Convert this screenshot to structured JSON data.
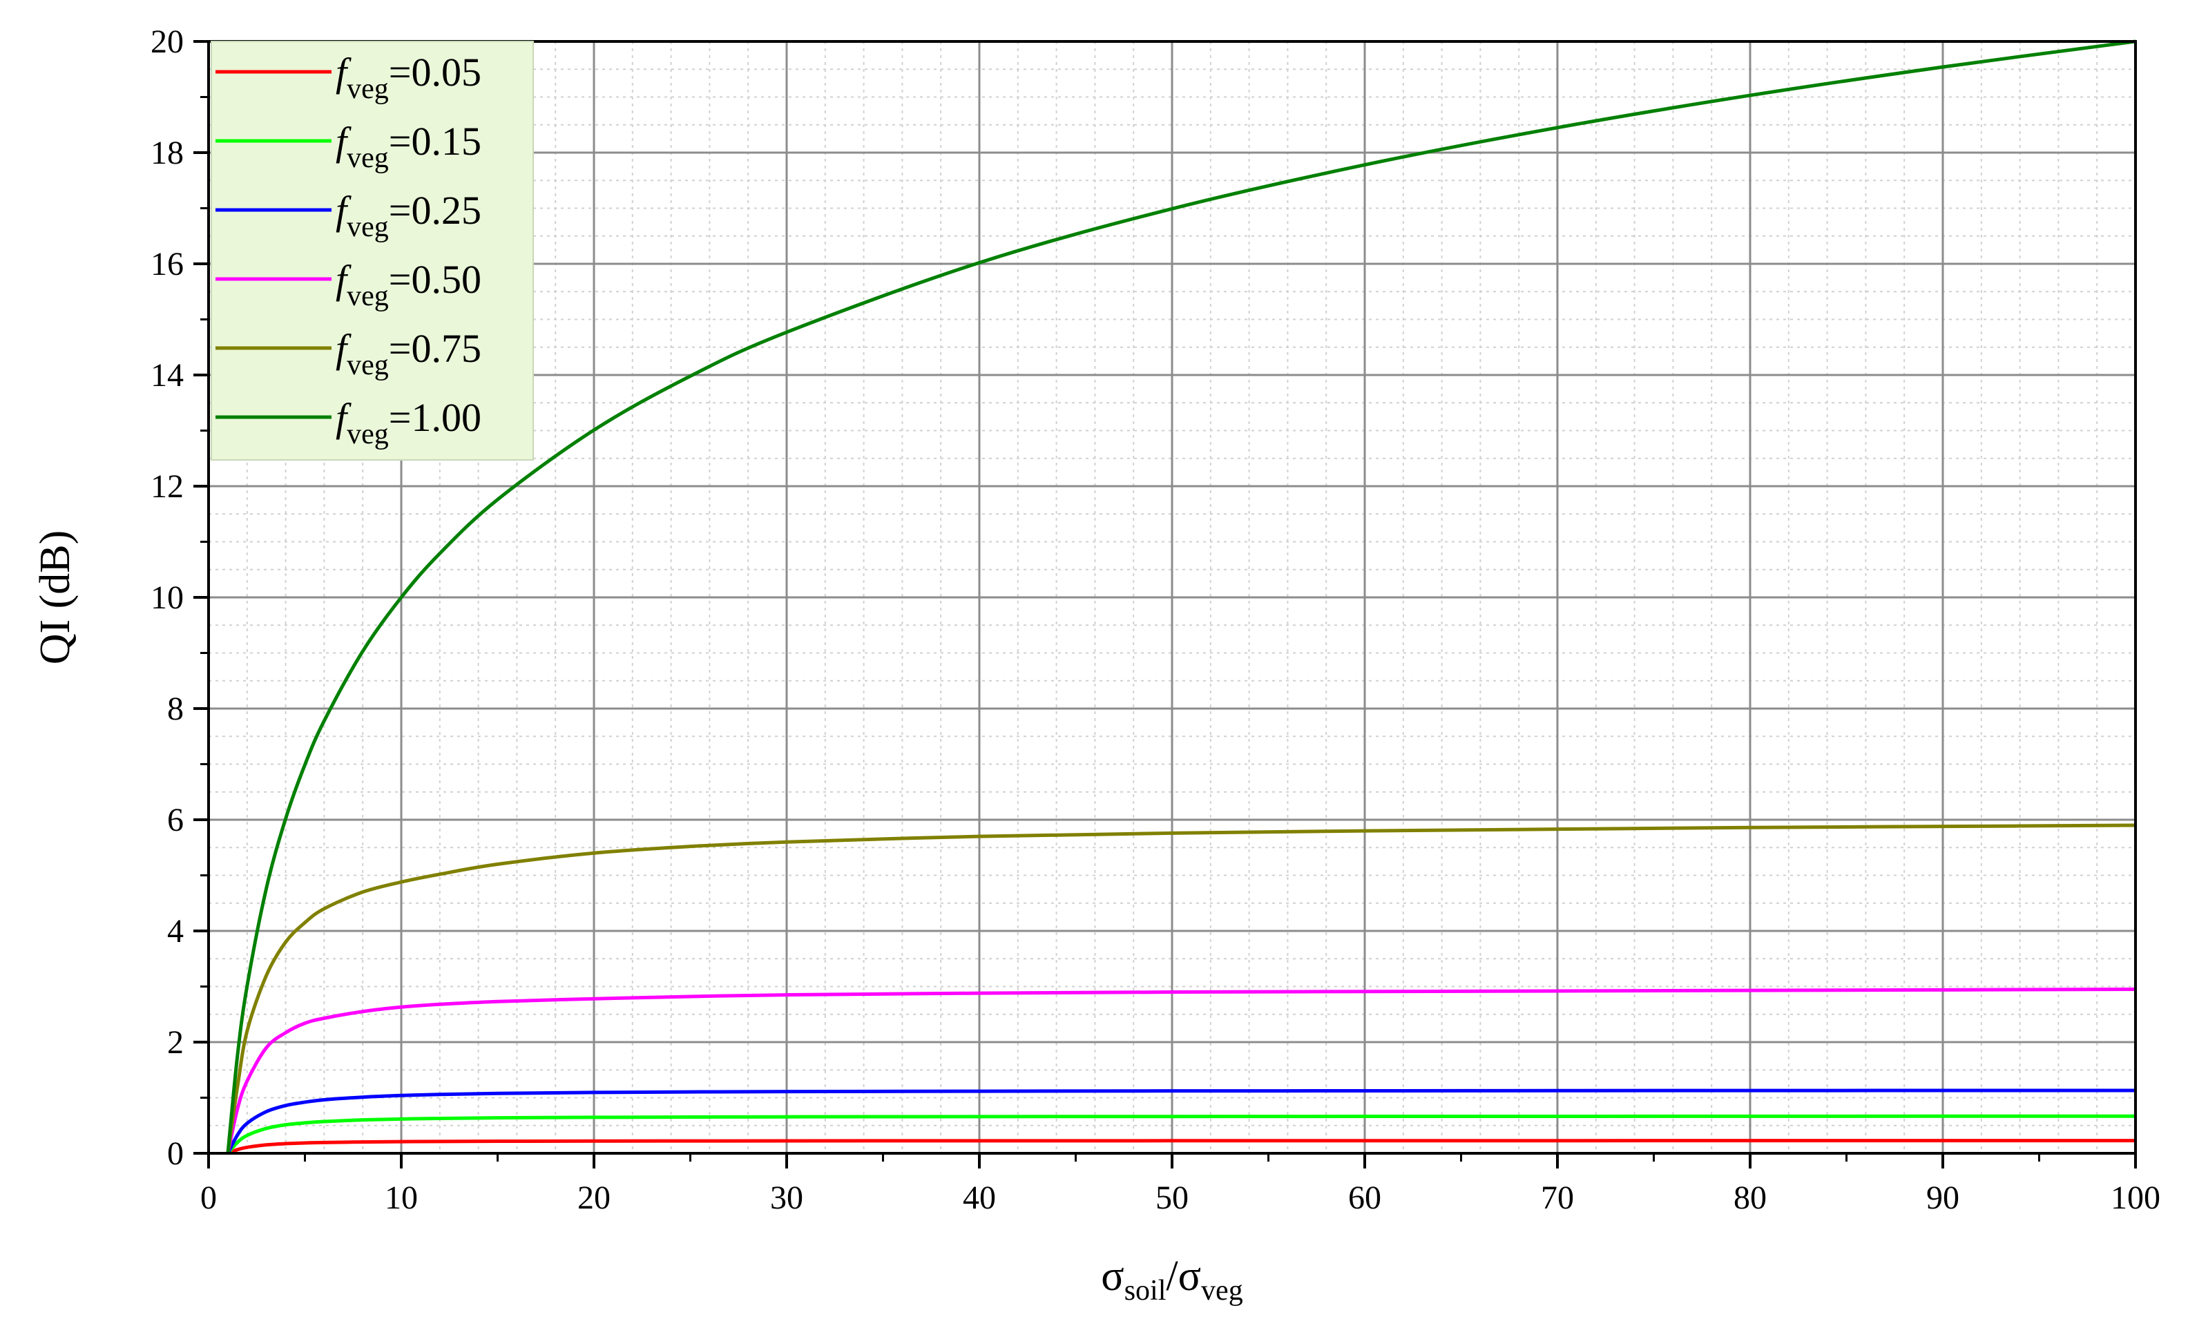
{
  "chart_data": {
    "type": "line",
    "title": "",
    "xlabel": {
      "base": "σ",
      "sub1": "soil",
      "slash": "/",
      "base2": "σ",
      "sub2": "veg"
    },
    "ylabel": "QI (dB)",
    "xlim": [
      0,
      100
    ],
    "ylim": [
      0,
      20
    ],
    "xticks": [
      "0",
      "10",
      "20",
      "30",
      "40",
      "50",
      "60",
      "70",
      "80",
      "90",
      "100"
    ],
    "yticks": [
      "0",
      "2",
      "4",
      "6",
      "8",
      "10",
      "12",
      "14",
      "16",
      "18",
      "20"
    ],
    "grid": true,
    "legend_position": "top-left",
    "legend_symbol": "f",
    "legend_subscript": "veg",
    "x": [
      1,
      1.5,
      2,
      3,
      4,
      5,
      6,
      8,
      10,
      12,
      15,
      20,
      25,
      30,
      40,
      50,
      60,
      70,
      80,
      90,
      100
    ],
    "series": [
      {
        "name": "=0.05",
        "color": "#ff0000",
        "values": [
          0,
          0.066,
          0.108,
          0.152,
          0.174,
          0.186,
          0.194,
          0.204,
          0.21,
          0.213,
          0.217,
          0.22,
          0.222,
          0.224,
          0.225,
          0.226,
          0.227,
          0.227,
          0.228,
          0.228,
          0.228
        ]
      },
      {
        "name": "=0.15",
        "color": "#00ff00",
        "values": [
          0,
          0.197,
          0.322,
          0.448,
          0.513,
          0.548,
          0.572,
          0.601,
          0.617,
          0.628,
          0.638,
          0.647,
          0.652,
          0.656,
          0.66,
          0.662,
          0.664,
          0.665,
          0.666,
          0.667,
          0.668
        ]
      },
      {
        "name": "=0.25",
        "color": "#0000ff",
        "values": [
          0,
          0.33,
          0.54,
          0.75,
          0.86,
          0.92,
          0.963,
          1.01,
          1.04,
          1.059,
          1.077,
          1.094,
          1.104,
          1.11,
          1.117,
          1.122,
          1.124,
          1.127,
          1.129,
          1.13,
          1.131
        ]
      },
      {
        "name": "=0.50",
        "color": "#ff00ff",
        "values": [
          0,
          0.8,
          1.3,
          1.9,
          2.17,
          2.34,
          2.43,
          2.55,
          2.63,
          2.68,
          2.73,
          2.78,
          2.82,
          2.85,
          2.88,
          2.9,
          2.91,
          2.92,
          2.93,
          2.94,
          2.95
        ]
      },
      {
        "name": "=0.75",
        "color": "#808000",
        "values": [
          0,
          1.2,
          2.2,
          3.2,
          3.8,
          4.15,
          4.4,
          4.7,
          4.88,
          5.02,
          5.2,
          5.4,
          5.52,
          5.6,
          5.7,
          5.76,
          5.8,
          5.83,
          5.86,
          5.88,
          5.9
        ]
      },
      {
        "name": "=1.00",
        "color": "#008000",
        "values": [
          0,
          1.76,
          3.01,
          4.77,
          6.02,
          6.99,
          7.78,
          9.03,
          10.0,
          10.79,
          11.76,
          13.01,
          13.98,
          14.77,
          16.02,
          16.99,
          17.78,
          18.45,
          19.03,
          19.54,
          20.0
        ]
      }
    ]
  }
}
